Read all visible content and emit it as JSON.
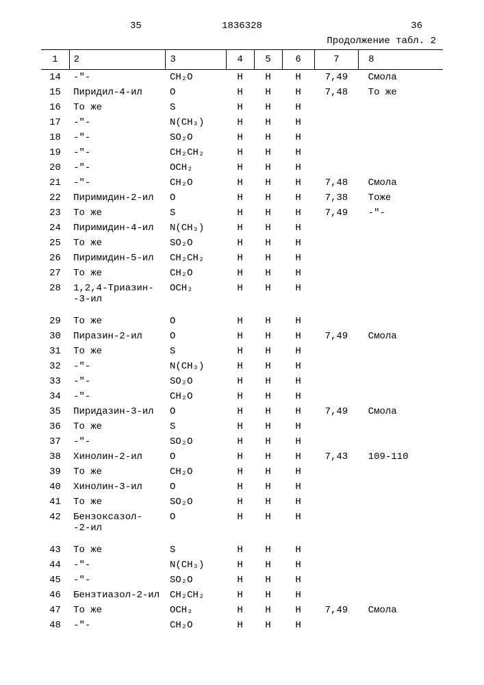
{
  "header": {
    "pageLeft": "35",
    "docNumber": "1836328",
    "pageRight": "36",
    "continuation": "Продолжение табл. 2"
  },
  "columns": [
    "1",
    "2",
    "3",
    "4",
    "5",
    "6",
    "7",
    "8"
  ],
  "rows": [
    {
      "n": "14",
      "c2": "-\"-",
      "c3": "CH₂O",
      "c4": "H",
      "c5": "H",
      "c6": "H",
      "c7": "7,49",
      "c8": "Смола"
    },
    {
      "n": "15",
      "c2": "Пиридил-4-ил",
      "c3": "O",
      "c4": "H",
      "c5": "H",
      "c6": "H",
      "c7": "7,48",
      "c8": "То же"
    },
    {
      "n": "16",
      "c2": "То же",
      "c3": "S",
      "c4": "H",
      "c5": "H",
      "c6": "H",
      "c7": "",
      "c8": ""
    },
    {
      "n": "17",
      "c2": "-\"-",
      "c3": "N(CH₃)",
      "c4": "H",
      "c5": "H",
      "c6": "H",
      "c7": "",
      "c8": ""
    },
    {
      "n": "18",
      "c2": "-\"-",
      "c3": "SO₂O",
      "c4": "H",
      "c5": "H",
      "c6": "H",
      "c7": "",
      "c8": ""
    },
    {
      "n": "19",
      "c2": "-\"-",
      "c3": "CH₂CH₂",
      "c4": "H",
      "c5": "H",
      "c6": "H",
      "c7": "",
      "c8": ""
    },
    {
      "n": "20",
      "c2": "-\"-",
      "c3": "OCH₂",
      "c4": "H",
      "c5": "H",
      "c6": "H",
      "c7": "",
      "c8": ""
    },
    {
      "n": "21",
      "c2": "-\"-",
      "c3": "CH₂O",
      "c4": "H",
      "c5": "H",
      "c6": "H",
      "c7": "7,48",
      "c8": "Смола"
    },
    {
      "n": "22",
      "c2": "Пиримидин-2-ил",
      "c3": "O",
      "c4": "H",
      "c5": "H",
      "c6": "H",
      "c7": "7,38",
      "c8": "Тоже"
    },
    {
      "n": "23",
      "c2": "То же",
      "c3": "S",
      "c4": "H",
      "c5": "H",
      "c6": "H",
      "c7": "7,49",
      "c8": "-\"-"
    },
    {
      "n": "24",
      "c2": "Пиримидин-4-ил",
      "c3": "N(CH₃)",
      "c4": "H",
      "c5": "H",
      "c6": "H",
      "c7": "",
      "c8": ""
    },
    {
      "n": "25",
      "c2": "То же",
      "c3": "SO₂O",
      "c4": "H",
      "c5": "H",
      "c6": "H",
      "c7": "",
      "c8": ""
    },
    {
      "n": "26",
      "c2": "Пиримидин-5-ил",
      "c3": "CH₂CH₂",
      "c4": "H",
      "c5": "H",
      "c6": "H",
      "c7": "",
      "c8": ""
    },
    {
      "n": "27",
      "c2": "То же",
      "c3": "CH₂O",
      "c4": "H",
      "c5": "H",
      "c6": "H",
      "c7": "",
      "c8": ""
    },
    {
      "n": "28",
      "c2": "1,2,4-Триазин-\n-3-ил",
      "c3": "OCH₂",
      "c4": "H",
      "c5": "H",
      "c6": "H",
      "c7": "",
      "c8": ""
    },
    {
      "n": "29",
      "c2": "То же",
      "c3": "O",
      "c4": "H",
      "c5": "H",
      "c6": "H",
      "c7": "",
      "c8": ""
    },
    {
      "n": "30",
      "c2": "Пиразин-2-ил",
      "c3": "O",
      "c4": "H",
      "c5": "H",
      "c6": "H",
      "c7": "7,49",
      "c8": "Смола"
    },
    {
      "n": "31",
      "c2": "То же",
      "c3": "S",
      "c4": "H",
      "c5": "H",
      "c6": "H",
      "c7": "",
      "c8": ""
    },
    {
      "n": "32",
      "c2": "-\"-",
      "c3": "N(CH₃)",
      "c4": "H",
      "c5": "H",
      "c6": "H",
      "c7": "",
      "c8": ""
    },
    {
      "n": "33",
      "c2": "-\"-",
      "c3": "SO₂O",
      "c4": "H",
      "c5": "H",
      "c6": "H",
      "c7": "",
      "c8": ""
    },
    {
      "n": "34",
      "c2": "-\"-",
      "c3": "CH₂O",
      "c4": "H",
      "c5": "H",
      "c6": "H",
      "c7": "",
      "c8": ""
    },
    {
      "n": "35",
      "c2": "Пиридазин-3-ил",
      "c3": "O",
      "c4": "H",
      "c5": "H",
      "c6": "H",
      "c7": "7,49",
      "c8": "Смола"
    },
    {
      "n": "36",
      "c2": "То же",
      "c3": "S",
      "c4": "H",
      "c5": "H",
      "c6": "H",
      "c7": "",
      "c8": ""
    },
    {
      "n": "37",
      "c2": "-\"-",
      "c3": "SO₂O",
      "c4": "H",
      "c5": "H",
      "c6": "H",
      "c7": "",
      "c8": ""
    },
    {
      "n": "38",
      "c2": "Хинолин-2-ил",
      "c3": "O",
      "c4": "H",
      "c5": "H",
      "c6": "H",
      "c7": "7,43",
      "c8": "109-110"
    },
    {
      "n": "39",
      "c2": "То же",
      "c3": "CH₂O",
      "c4": "H",
      "c5": "H",
      "c6": "H",
      "c7": "",
      "c8": ""
    },
    {
      "n": "40",
      "c2": "Хинолин-3-ил",
      "c3": "O",
      "c4": "H",
      "c5": "H",
      "c6": "H",
      "c7": "",
      "c8": ""
    },
    {
      "n": "41",
      "c2": "То же",
      "c3": "SO₂O",
      "c4": "H",
      "c5": "H",
      "c6": "H",
      "c7": "",
      "c8": ""
    },
    {
      "n": "42",
      "c2": "Бензоксазол-\n-2-ил",
      "c3": "O",
      "c4": "H",
      "c5": "H",
      "c6": "H",
      "c7": "",
      "c8": ""
    },
    {
      "n": "43",
      "c2": "То же",
      "c3": "S",
      "c4": "H",
      "c5": "H",
      "c6": "H",
      "c7": "",
      "c8": ""
    },
    {
      "n": "44",
      "c2": "-\"-",
      "c3": "N(CH₃)",
      "c4": "H",
      "c5": "H",
      "c6": "H",
      "c7": "",
      "c8": ""
    },
    {
      "n": "45",
      "c2": "-\"-",
      "c3": "SO₂O",
      "c4": "H",
      "c5": "H",
      "c6": "H",
      "c7": "",
      "c8": ""
    },
    {
      "n": "46",
      "c2": "Бензтиазол-2-ил",
      "c3": "CH₂CH₂",
      "c4": "H",
      "c5": "H",
      "c6": "H",
      "c7": "",
      "c8": ""
    },
    {
      "n": "47",
      "c2": "То же",
      "c3": "OCH₂",
      "c4": "H",
      "c5": "H",
      "c6": "H",
      "c7": "7,49",
      "c8": "Смола"
    },
    {
      "n": "48",
      "c2": "-\"-",
      "c3": "CH₂O",
      "c4": "H",
      "c5": "H",
      "c6": "H",
      "c7": "",
      "c8": ""
    }
  ]
}
